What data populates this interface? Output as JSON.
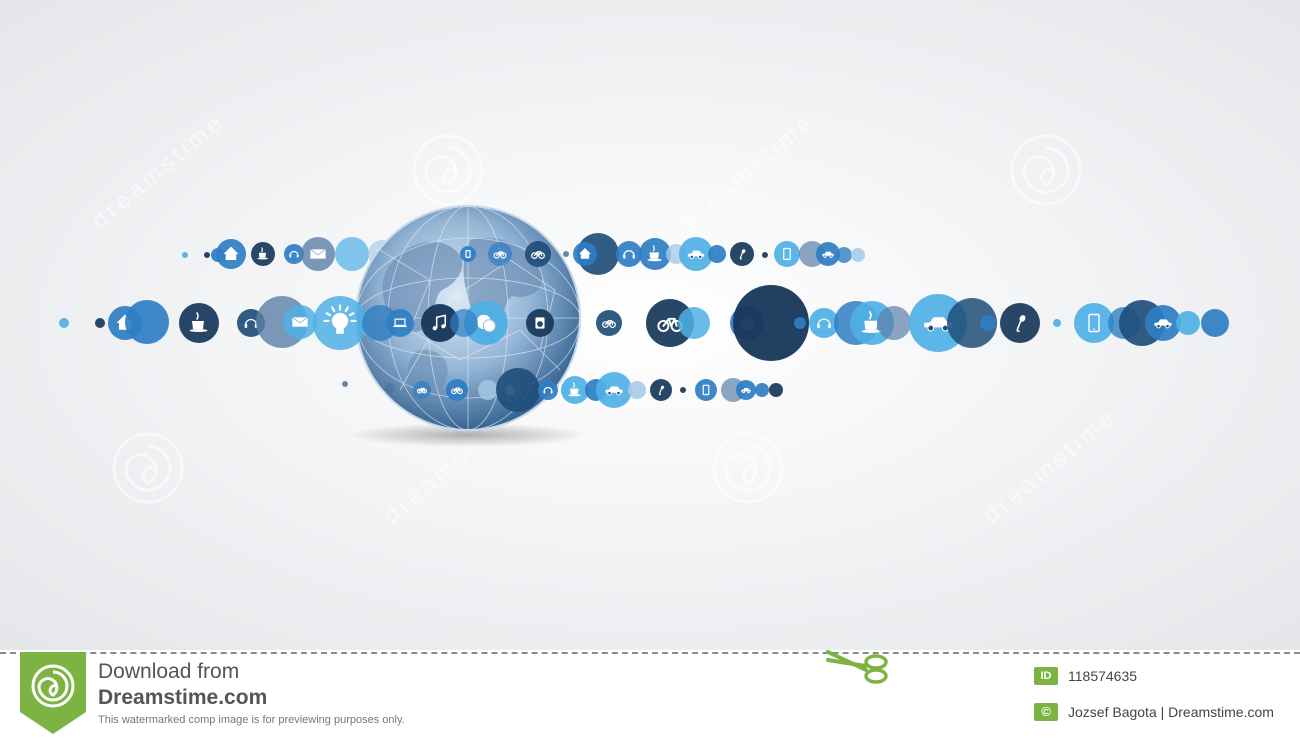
{
  "footer": {
    "download_line1": "Download from",
    "download_line2": "Dreamstime.com",
    "note": "This watermarked comp image is for previewing purposes only.",
    "id_badge": "ID",
    "image_id": "118574635",
    "copyright_badge": "©",
    "credit": "Jozsef Bagota | Dreamstime.com"
  },
  "watermark": {
    "text": "dreamstime"
  },
  "colors": {
    "navy": "#1f4e79",
    "deep_navy": "#16375a",
    "blue": "#2f7ec3",
    "light_blue": "#4fb0e6",
    "pale_blue": "#a9cbe8",
    "slate": "#5b7fa6",
    "brand_green": "#7cb342"
  },
  "icons": [
    "home-icon",
    "coffee-icon",
    "headphones-icon",
    "mail-icon",
    "lightbulb-icon",
    "laptop-icon",
    "music-icon",
    "chat-icon",
    "washer-icon",
    "bicycle-icon",
    "car-icon",
    "microphone-icon",
    "tablet-icon"
  ]
}
